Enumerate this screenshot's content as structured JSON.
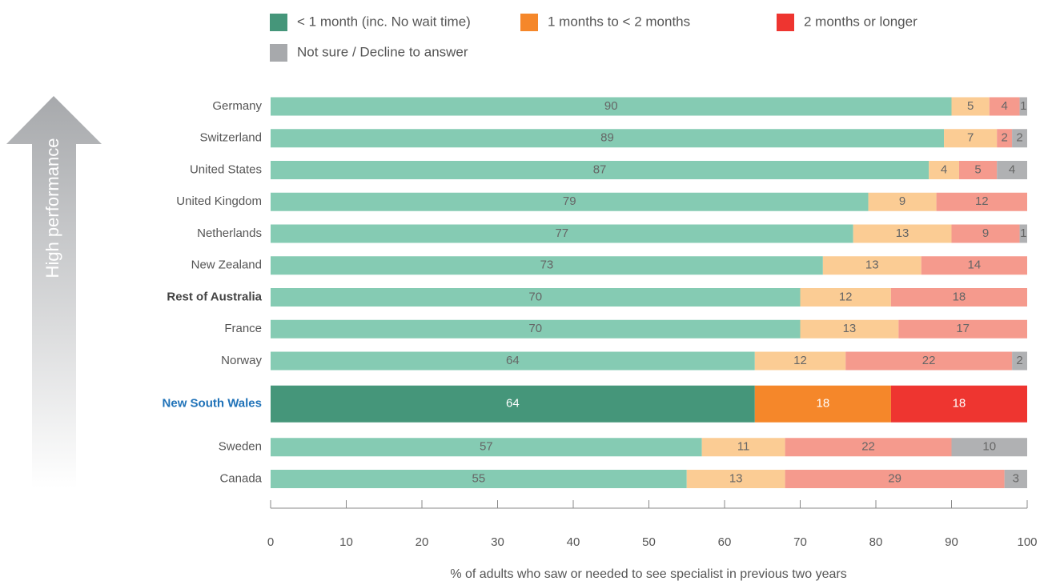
{
  "chart_data": {
    "type": "bar",
    "orientation": "horizontal",
    "stacked": true,
    "side_label": "High performance",
    "xlabel": "% of adults who saw or needed to see specialist in previous two years",
    "categories": [
      "Germany",
      "Switzerland",
      "United States",
      "United Kingdom",
      "Netherlands",
      "New Zealand",
      "Rest of Australia",
      "France",
      "Norway",
      "New South Wales",
      "Sweden",
      "Canada"
    ],
    "highlight": "New South Wales",
    "bold": [
      "Rest of Australia"
    ],
    "series": [
      {
        "name": "< 1 month (inc. No wait time)",
        "color": "#85cbb3",
        "highlight_color": "#45967a",
        "values": [
          90,
          89,
          87,
          79,
          77,
          73,
          70,
          70,
          64,
          64,
          57,
          55
        ]
      },
      {
        "name": "1 months to < 2 months",
        "color": "#fbcc94",
        "highlight_color": "#f5872a",
        "values": [
          5,
          7,
          4,
          9,
          13,
          13,
          12,
          13,
          12,
          18,
          11,
          13
        ]
      },
      {
        "name": "2 months or longer",
        "color": "#f59a8d",
        "highlight_color": "#ee3530",
        "values": [
          4,
          2,
          5,
          12,
          9,
          14,
          18,
          17,
          22,
          18,
          22,
          29
        ]
      },
      {
        "name": "Not sure / Decline to answer",
        "color": "#b0b1b3",
        "highlight_color": "#a7a9ac",
        "values": [
          1,
          2,
          4,
          null,
          1,
          null,
          null,
          null,
          2,
          null,
          10,
          3
        ]
      }
    ],
    "xlim": [
      0,
      100
    ],
    "xticks": [
      0,
      10,
      20,
      30,
      40,
      50,
      60,
      70,
      80,
      90,
      100
    ]
  }
}
